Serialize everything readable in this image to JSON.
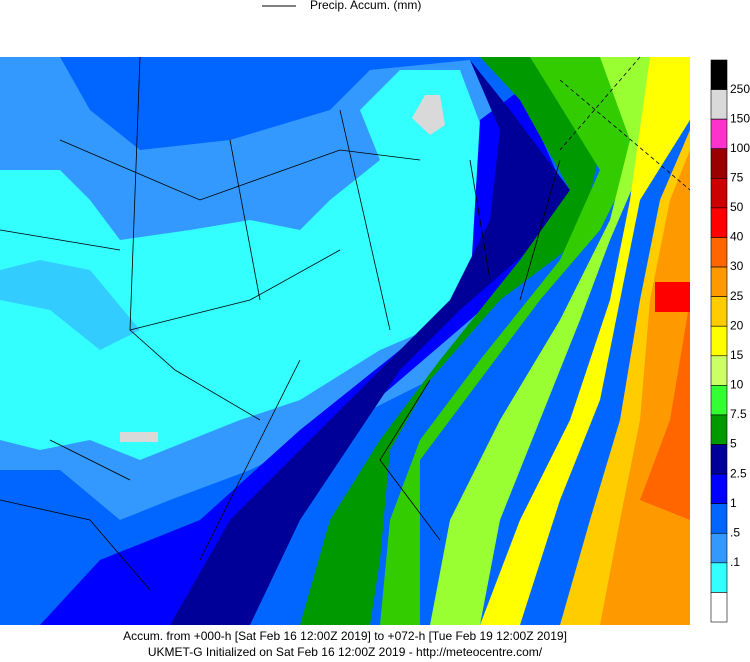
{
  "legend": {
    "label": "Precip. Accum. (mm)"
  },
  "colorbar": {
    "labels": [
      "250",
      "150",
      "100",
      "75",
      "50",
      "40",
      "30",
      "25",
      "20",
      "15",
      "10",
      "7.5",
      "5",
      "2.5",
      "1",
      ".5",
      ".1"
    ]
  },
  "footer": {
    "line1": "Accum. from +000-h [Sat Feb 16 12:00Z 2019] to +072-h [Tue Feb 19 12:00Z 2019]",
    "line2": "UKMET-G Initialized on Sat Feb 16 12:00Z 2019 - http://meteocentre.com/"
  }
}
